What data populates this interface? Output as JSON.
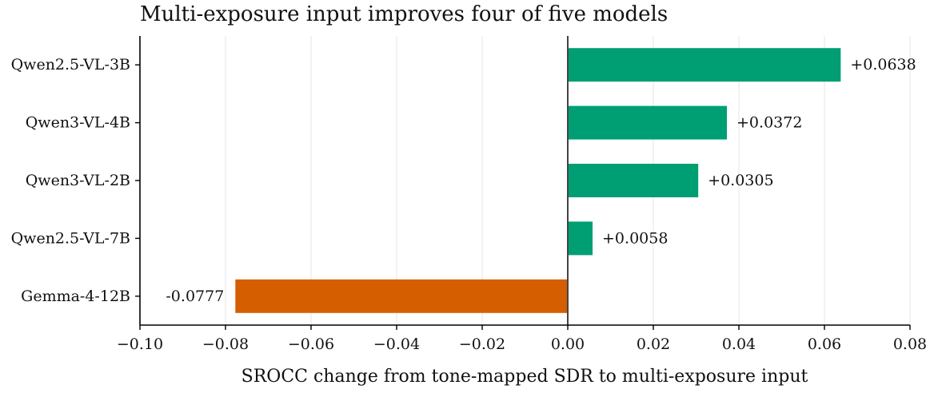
{
  "chart_data": {
    "type": "bar",
    "orientation": "horizontal",
    "title": "Multi-exposure input improves four of five models",
    "xlabel": "SROCC change from tone-mapped SDR to multi-exposure input",
    "ylabel": "",
    "xlim": [
      -0.1,
      0.08
    ],
    "xticks": [
      -0.1,
      -0.08,
      -0.06,
      -0.04,
      -0.02,
      0.0,
      0.02,
      0.04,
      0.06,
      0.08
    ],
    "xtick_labels": [
      "−0.10",
      "−0.08",
      "−0.06",
      "−0.04",
      "−0.02",
      "0.00",
      "0.02",
      "0.04",
      "0.06",
      "0.08"
    ],
    "grid": "vertical",
    "categories": [
      "Qwen2.5-VL-3B",
      "Qwen3-VL-4B",
      "Qwen3-VL-2B",
      "Qwen2.5-VL-7B",
      "Gemma-4-12B"
    ],
    "values": [
      0.0638,
      0.0372,
      0.0305,
      0.0058,
      -0.0777
    ],
    "data_labels": [
      "+0.0638",
      "+0.0372",
      "+0.0305",
      "+0.0058",
      "-0.0777"
    ],
    "colors": {
      "positive": "#009e73",
      "negative": "#d55e00"
    }
  }
}
